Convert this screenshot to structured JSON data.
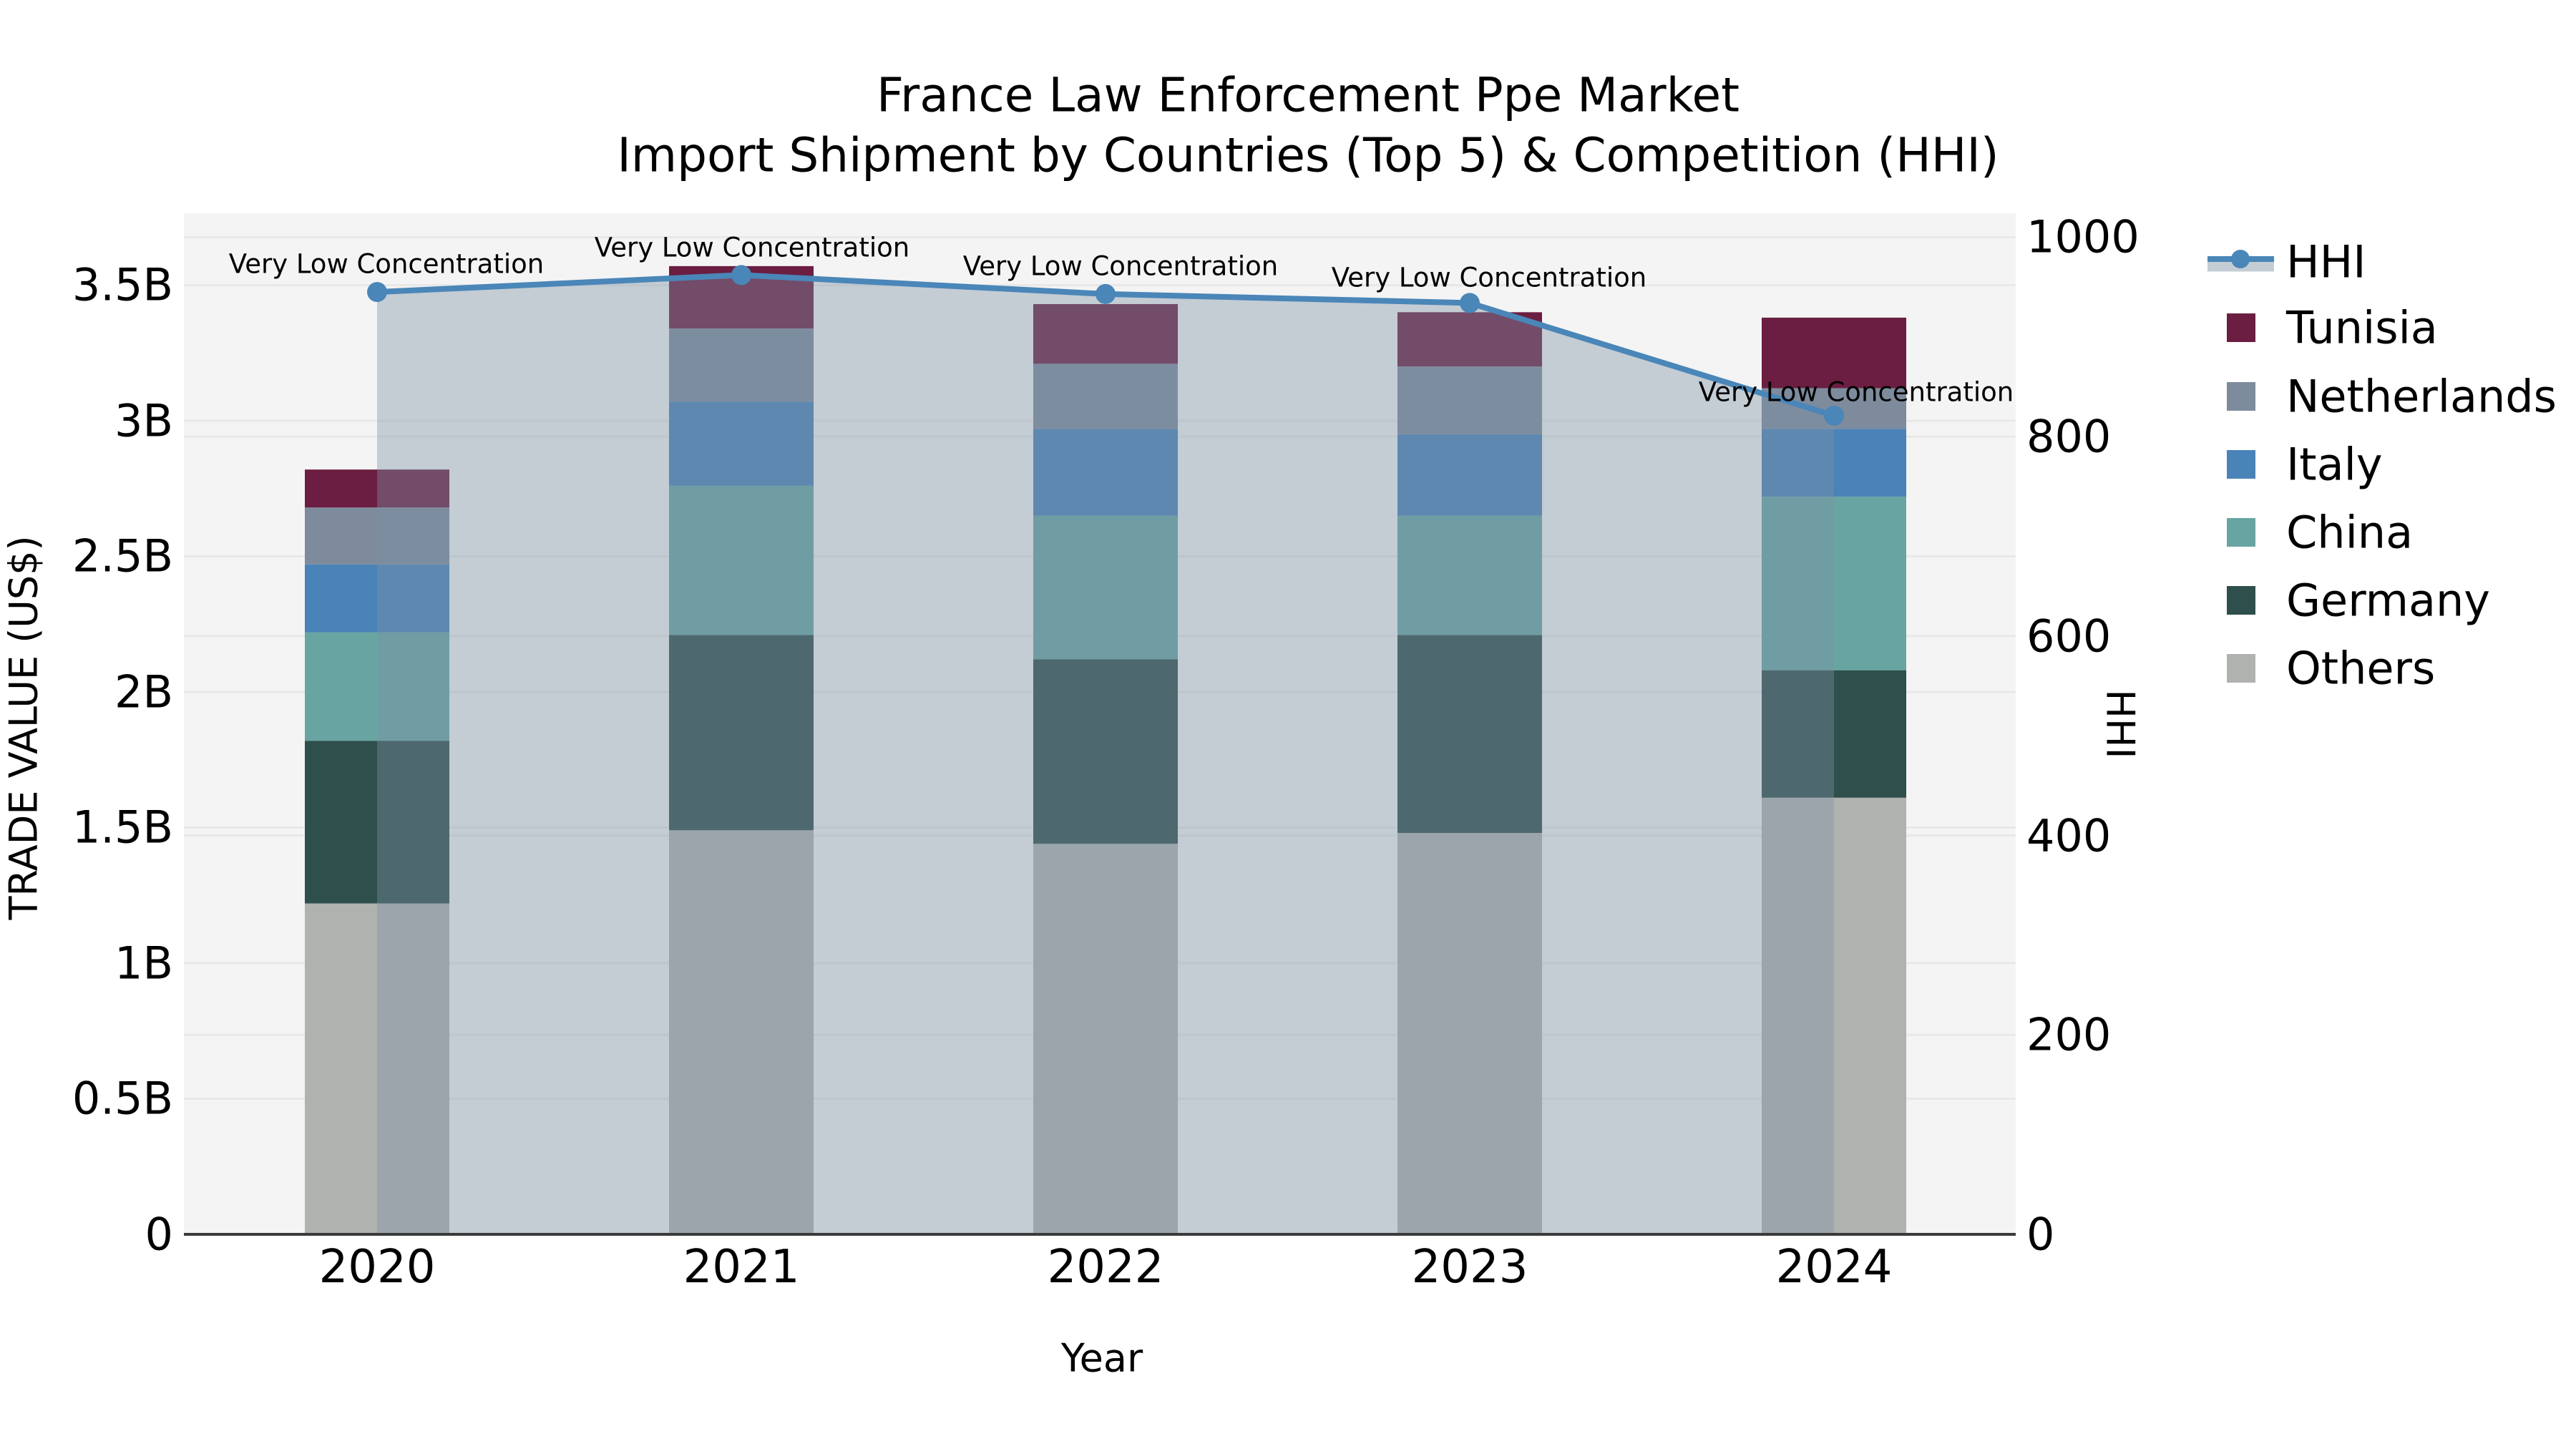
{
  "title": {
    "line1": "France Law Enforcement Ppe Market",
    "line2": "Import Shipment by Countries (Top 5) & Competition (HHI)"
  },
  "axes": {
    "x_label": "Year",
    "y_left_label": "TRADE VALUE (US$)",
    "y_right_label": "HHI",
    "y_left_ticks": [
      {
        "label": "0",
        "value": 0
      },
      {
        "label": "0.5B",
        "value": 0.5
      },
      {
        "label": "1B",
        "value": 1
      },
      {
        "label": "1.5B",
        "value": 1.5
      },
      {
        "label": "2B",
        "value": 2
      },
      {
        "label": "2.5B",
        "value": 2.5
      },
      {
        "label": "3B",
        "value": 3
      },
      {
        "label": "3.5B",
        "value": 3.5
      }
    ],
    "y_right_ticks": [
      {
        "label": "0",
        "value": 0
      },
      {
        "label": "200",
        "value": 200
      },
      {
        "label": "400",
        "value": 400
      },
      {
        "label": "600",
        "value": 600
      },
      {
        "label": "800",
        "value": 800
      },
      {
        "label": "1000",
        "value": 1000
      }
    ]
  },
  "chart_data": {
    "type": "bar",
    "subtype": "stacked-bars-with-line-overlay",
    "categories": [
      "2020",
      "2021",
      "2022",
      "2023",
      "2024"
    ],
    "series": [
      {
        "name": "Others",
        "color": "#b0b2af",
        "values": [
          1.22,
          1.49,
          1.44,
          1.48,
          1.61
        ]
      },
      {
        "name": "Germany",
        "color": "#2e4f4c",
        "values": [
          0.6,
          0.72,
          0.68,
          0.73,
          0.47
        ]
      },
      {
        "name": "China",
        "color": "#68a5a2",
        "values": [
          0.4,
          0.55,
          0.53,
          0.44,
          0.64
        ]
      },
      {
        "name": "Italy",
        "color": "#4a83b8",
        "values": [
          0.25,
          0.31,
          0.32,
          0.3,
          0.25
        ]
      },
      {
        "name": "Netherlands",
        "color": "#7d8b9d",
        "values": [
          0.21,
          0.27,
          0.24,
          0.25,
          0.15
        ]
      },
      {
        "name": "Tunisia",
        "color": "#6b1e41",
        "values": [
          0.14,
          0.23,
          0.22,
          0.2,
          0.26
        ]
      }
    ],
    "totals": [
      2.82,
      3.57,
      3.43,
      3.4,
      3.38
    ],
    "line": {
      "name": "HHI",
      "color": "#4a86b8",
      "area_fill": "rgba(125,145,165,0.4)",
      "values": [
        945,
        962,
        943,
        934,
        821
      ]
    },
    "annotations": [
      "Very Low Concentration",
      "Very Low Concentration",
      "Very Low Concentration",
      "Very Low Concentration",
      "Very Low Concentration"
    ],
    "title": "France Law Enforcement Ppe Market — Import Shipment by Countries (Top 5) & Competition (HHI)",
    "xlabel": "Year",
    "ylabel_left": "TRADE VALUE (US$)",
    "ylabel_right": "HHI",
    "ylim_left": [
      0,
      3.765
    ],
    "ylim_right": [
      0,
      1024
    ],
    "grid": true,
    "legend_position": "right"
  },
  "legend": {
    "items": [
      {
        "label": "HHI",
        "type": "line",
        "color": "#4a86b8",
        "band": "#c4ccd4"
      },
      {
        "label": "Tunisia",
        "type": "patch",
        "color": "#6b1e41"
      },
      {
        "label": "Netherlands",
        "type": "patch",
        "color": "#7d8b9d"
      },
      {
        "label": "Italy",
        "type": "patch",
        "color": "#4a83b8"
      },
      {
        "label": "China",
        "type": "patch",
        "color": "#68a5a2"
      },
      {
        "label": "Germany",
        "type": "patch",
        "color": "#2e4f4c"
      },
      {
        "label": "Others",
        "type": "patch",
        "color": "#b0b2af"
      }
    ]
  },
  "style": {
    "plot_bg": "#f4f4f4",
    "grid_color": "#e8e8e8",
    "axis_line_color": "#3a3a3a",
    "text_color": "#000000"
  }
}
